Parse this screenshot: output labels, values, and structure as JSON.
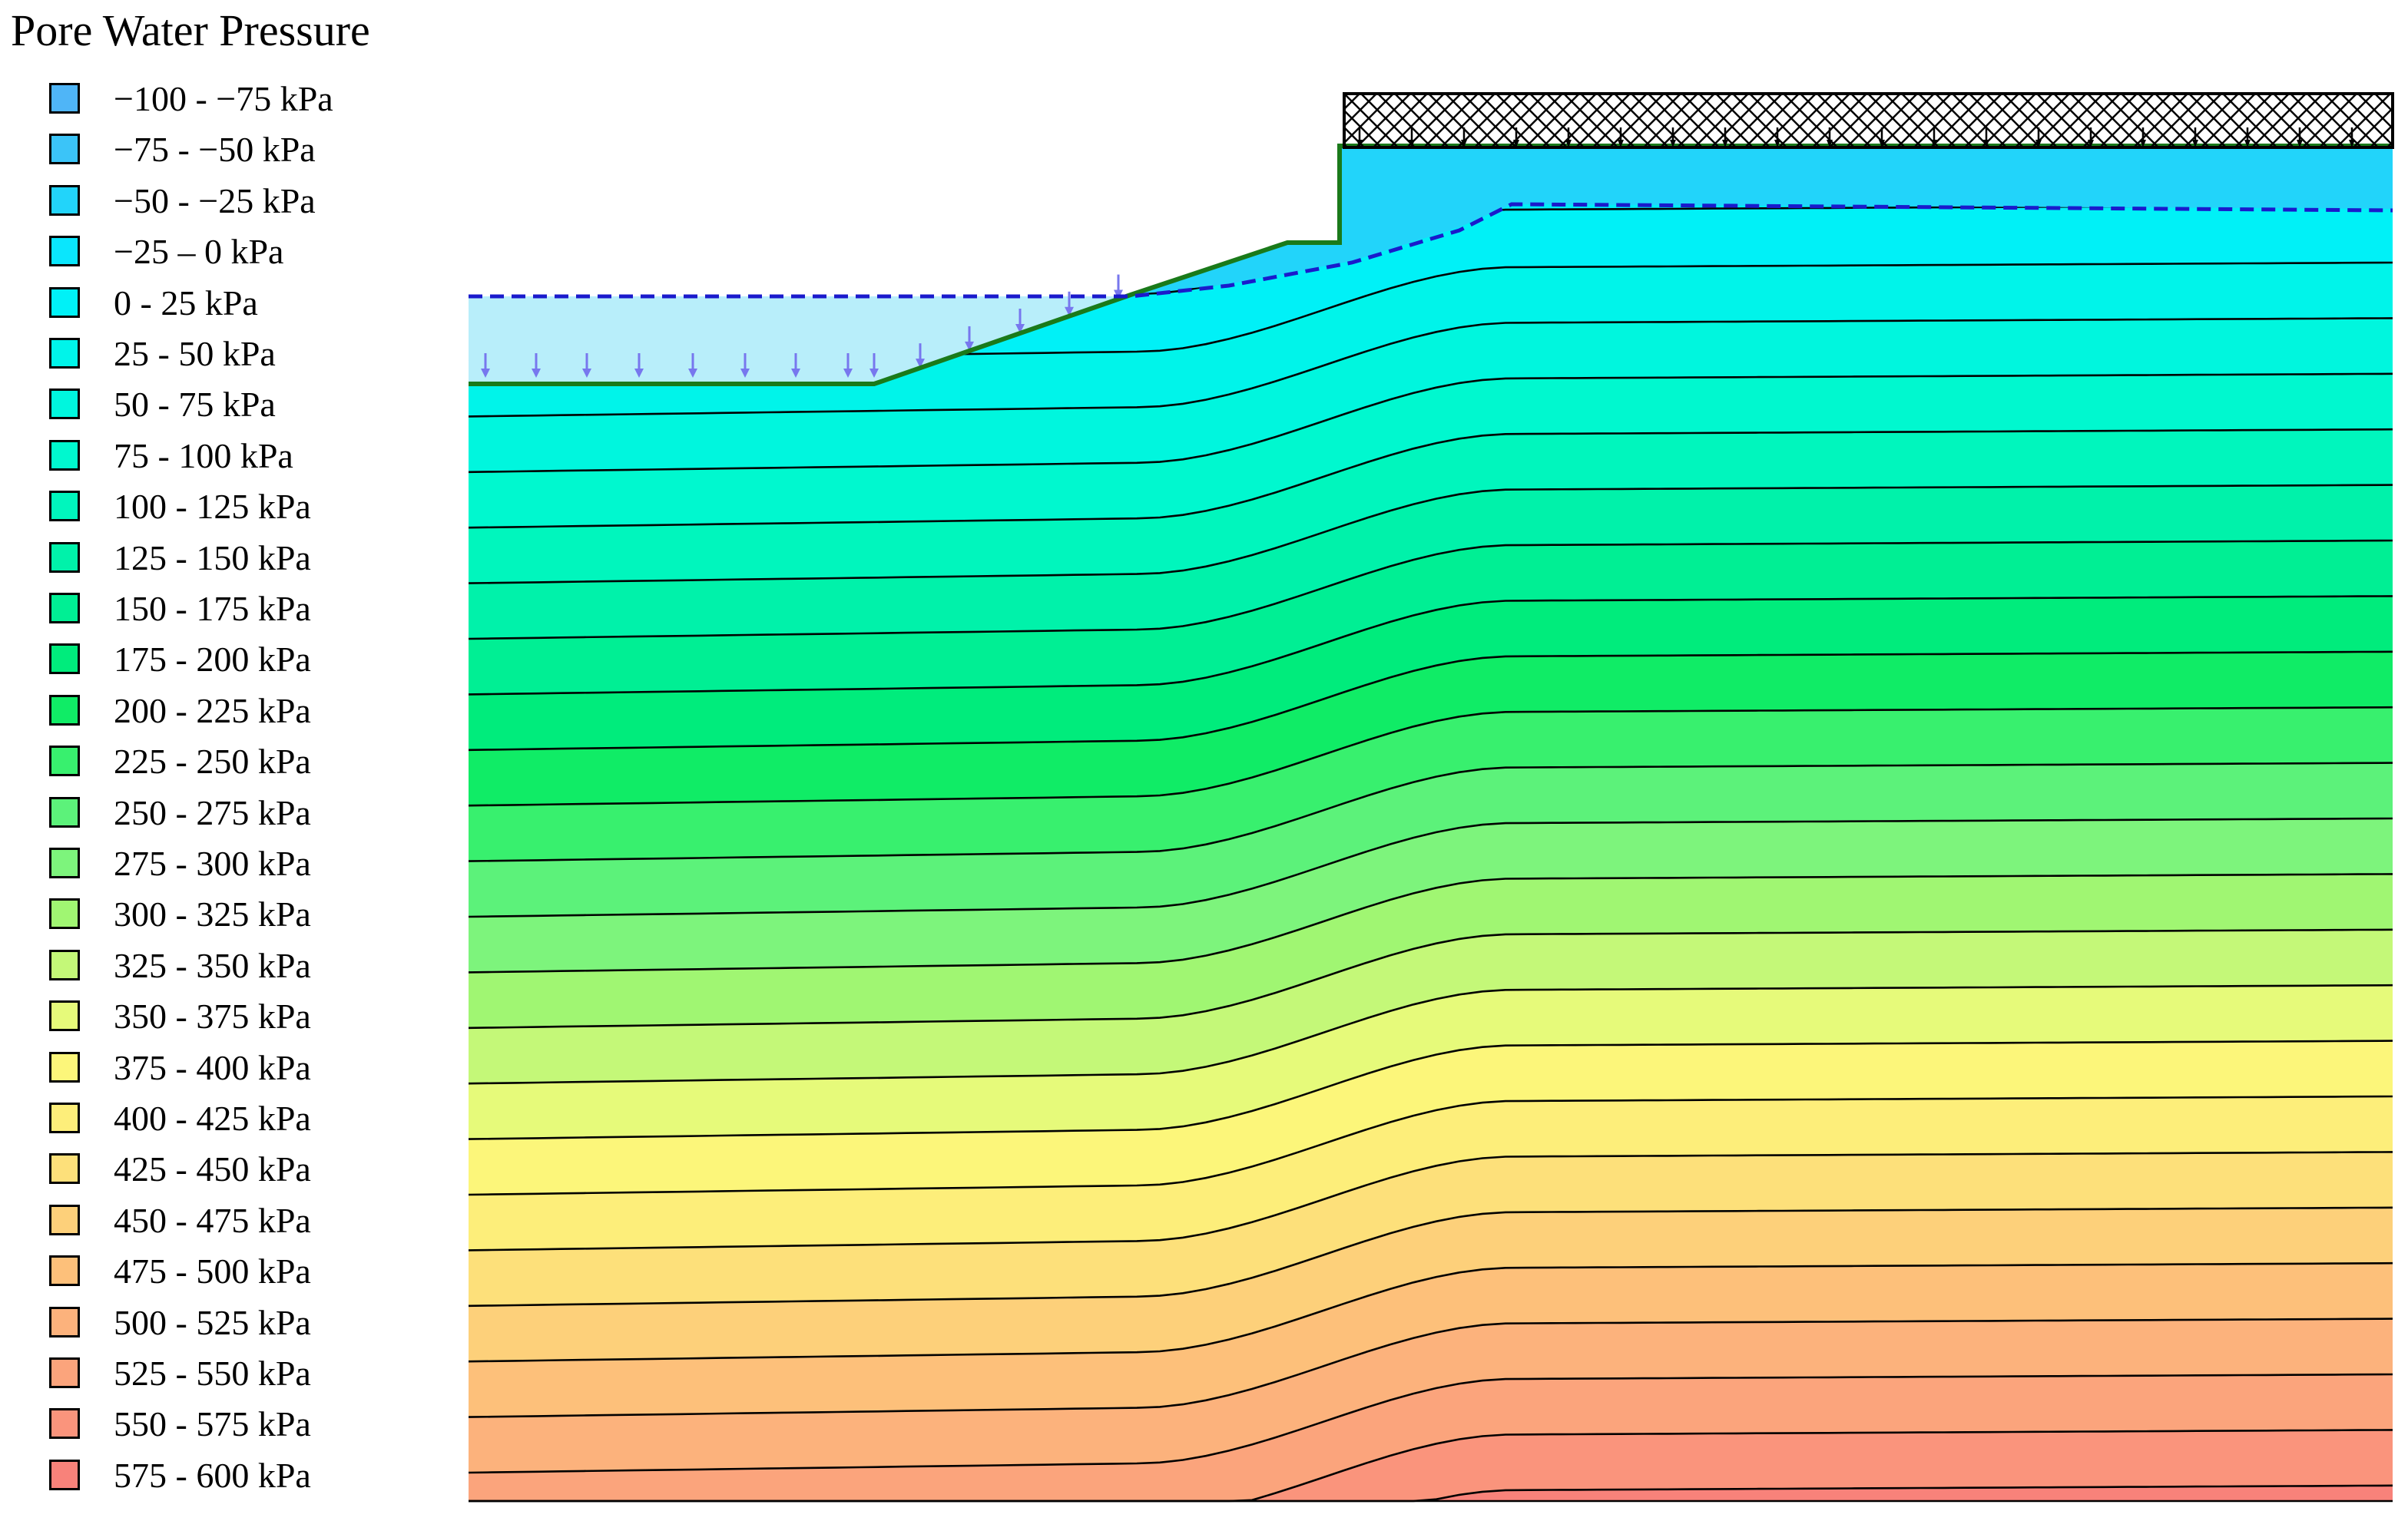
{
  "title": "Pore Water Pressure",
  "legend": {
    "items": [
      {
        "label": "−100 - −75 kPa",
        "color": "#4fb5f7"
      },
      {
        "label": "−75 - −50 kPa",
        "color": "#3bc4f8"
      },
      {
        "label": "−50 - −25 kPa",
        "color": "#22d4fa"
      },
      {
        "label": "−25 – 0 kPa",
        "color": "#0ae6fd"
      },
      {
        "label": "0 - 25 kPa",
        "color": "#00f1f7"
      },
      {
        "label": "25 - 50 kPa",
        "color": "#00f4ea"
      },
      {
        "label": "50 - 75 kPa",
        "color": "#00f6de"
      },
      {
        "label": "75 - 100 kPa",
        "color": "#00f8cf"
      },
      {
        "label": "100 - 125 kPa",
        "color": "#00f6bd"
      },
      {
        "label": "125 - 150 kPa",
        "color": "#00f2aa"
      },
      {
        "label": "150 - 175 kPa",
        "color": "#00ef94"
      },
      {
        "label": "175 - 200 kPa",
        "color": "#00ec7c"
      },
      {
        "label": "200 - 225 kPa",
        "color": "#10ec66"
      },
      {
        "label": "225 - 250 kPa",
        "color": "#38f06e"
      },
      {
        "label": "250 - 275 kPa",
        "color": "#5cf27a"
      },
      {
        "label": "275 - 300 kPa",
        "color": "#7df47c"
      },
      {
        "label": "300 - 325 kPa",
        "color": "#a0f672"
      },
      {
        "label": "325 - 350 kPa",
        "color": "#c4f878"
      },
      {
        "label": "350 - 375 kPa",
        "color": "#e6fa7a"
      },
      {
        "label": "375 - 400 kPa",
        "color": "#fcf67a"
      },
      {
        "label": "400 - 425 kPa",
        "color": "#fdee7a"
      },
      {
        "label": "425 - 450 kPa",
        "color": "#fde07a"
      },
      {
        "label": "450 - 475 kPa",
        "color": "#fdd07a"
      },
      {
        "label": "475 - 500 kPa",
        "color": "#fdc07a"
      },
      {
        "label": "500 - 525 kPa",
        "color": "#fcb27c"
      },
      {
        "label": "525 - 550 kPa",
        "color": "#fba47c"
      },
      {
        "label": "550 - 575 kPa",
        "color": "#fa947c"
      },
      {
        "label": "575 - 600 kPa",
        "color": "#f8827a"
      }
    ]
  },
  "diagram": {
    "ponded_water_color": "#b8eefa",
    "unsaturated_color": "#22d4fa",
    "water_table_color": "#1a1acc",
    "ground_line_color": "#1a7a1a",
    "infiltration_arrow_color": "#7777ee",
    "surcharge_hatch_color": "#000000",
    "contour_line_color": "#000000"
  }
}
